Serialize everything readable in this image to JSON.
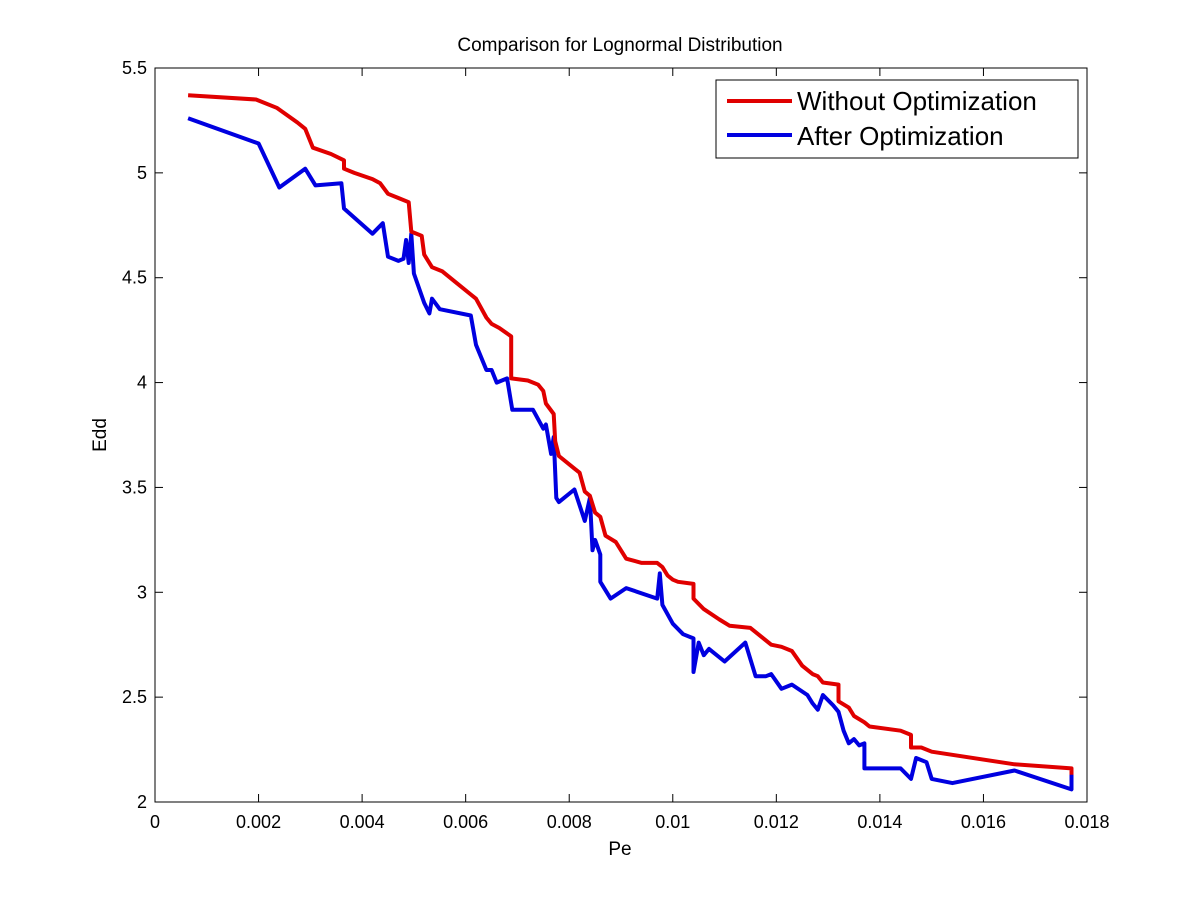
{
  "chart_data": {
    "type": "line",
    "title": "Comparison for Lognormal Distribution",
    "xlabel": "Pe",
    "ylabel": "Edd",
    "xlim": [
      0,
      0.018
    ],
    "ylim": [
      2,
      5.5
    ],
    "xticks": [
      0,
      0.002,
      0.004,
      0.006,
      0.008,
      0.01,
      0.012,
      0.014,
      0.016,
      0.018
    ],
    "xtick_labels": [
      "0",
      "0.002",
      "0.004",
      "0.006",
      "0.008",
      "0.01",
      "0.012",
      "0.014",
      "0.016",
      "0.018"
    ],
    "yticks": [
      2,
      2.5,
      3,
      3.5,
      4,
      4.5,
      5,
      5.5
    ],
    "ytick_labels": [
      "2",
      "2.5",
      "3",
      "3.5",
      "4",
      "4.5",
      "5",
      "5.5"
    ],
    "grid": false,
    "legend_position": "top-right",
    "series": [
      {
        "name": "Without Optimization",
        "color": "#e00000",
        "points": [
          [
            0.00064,
            5.37
          ],
          [
            0.00195,
            5.35
          ],
          [
            0.00235,
            5.31
          ],
          [
            0.00275,
            5.24
          ],
          [
            0.0029,
            5.21
          ],
          [
            0.00305,
            5.12
          ],
          [
            0.0034,
            5.09
          ],
          [
            0.00365,
            5.06
          ],
          [
            0.00365,
            5.02
          ],
          [
            0.00385,
            5.0
          ],
          [
            0.0042,
            4.97
          ],
          [
            0.00435,
            4.95
          ],
          [
            0.0045,
            4.9
          ],
          [
            0.0047,
            4.88
          ],
          [
            0.0049,
            4.86
          ],
          [
            0.00495,
            4.72
          ],
          [
            0.00515,
            4.7
          ],
          [
            0.0052,
            4.61
          ],
          [
            0.00535,
            4.55
          ],
          [
            0.00555,
            4.53
          ],
          [
            0.0058,
            4.48
          ],
          [
            0.0061,
            4.42
          ],
          [
            0.0062,
            4.4
          ],
          [
            0.0064,
            4.31
          ],
          [
            0.0065,
            4.28
          ],
          [
            0.00665,
            4.26
          ],
          [
            0.00688,
            4.22
          ],
          [
            0.00688,
            4.02
          ],
          [
            0.0072,
            4.01
          ],
          [
            0.0074,
            3.99
          ],
          [
            0.0075,
            3.96
          ],
          [
            0.00755,
            3.9
          ],
          [
            0.0077,
            3.85
          ],
          [
            0.00773,
            3.72
          ],
          [
            0.0078,
            3.65
          ],
          [
            0.0081,
            3.59
          ],
          [
            0.0082,
            3.57
          ],
          [
            0.0083,
            3.48
          ],
          [
            0.0084,
            3.46
          ],
          [
            0.0085,
            3.38
          ],
          [
            0.0086,
            3.36
          ],
          [
            0.0087,
            3.27
          ],
          [
            0.0089,
            3.24
          ],
          [
            0.0091,
            3.16
          ],
          [
            0.0094,
            3.14
          ],
          [
            0.0097,
            3.14
          ],
          [
            0.0098,
            3.12
          ],
          [
            0.0099,
            3.08
          ],
          [
            0.01,
            3.06
          ],
          [
            0.0101,
            3.05
          ],
          [
            0.0104,
            3.04
          ],
          [
            0.0104,
            2.97
          ],
          [
            0.0106,
            2.92
          ],
          [
            0.0109,
            2.87
          ],
          [
            0.0111,
            2.84
          ],
          [
            0.0115,
            2.83
          ],
          [
            0.0117,
            2.79
          ],
          [
            0.0119,
            2.75
          ],
          [
            0.0121,
            2.74
          ],
          [
            0.0123,
            2.72
          ],
          [
            0.0125,
            2.65
          ],
          [
            0.0127,
            2.61
          ],
          [
            0.0128,
            2.6
          ],
          [
            0.0129,
            2.57
          ],
          [
            0.0132,
            2.56
          ],
          [
            0.0132,
            2.48
          ],
          [
            0.0134,
            2.45
          ],
          [
            0.0135,
            2.41
          ],
          [
            0.0137,
            2.38
          ],
          [
            0.0138,
            2.36
          ],
          [
            0.0144,
            2.34
          ],
          [
            0.0146,
            2.32
          ],
          [
            0.0146,
            2.26
          ],
          [
            0.0148,
            2.26
          ],
          [
            0.015,
            2.24
          ],
          [
            0.0166,
            2.18
          ],
          [
            0.0177,
            2.16
          ],
          [
            0.0177,
            2.13
          ]
        ]
      },
      {
        "name": "After Optimization",
        "color": "#0000e0",
        "points": [
          [
            0.00064,
            5.26
          ],
          [
            0.002,
            5.14
          ],
          [
            0.0024,
            4.93
          ],
          [
            0.0029,
            5.02
          ],
          [
            0.0031,
            4.94
          ],
          [
            0.0036,
            4.95
          ],
          [
            0.00365,
            4.83
          ],
          [
            0.0042,
            4.71
          ],
          [
            0.0044,
            4.76
          ],
          [
            0.0045,
            4.6
          ],
          [
            0.0047,
            4.58
          ],
          [
            0.0048,
            4.59
          ],
          [
            0.00485,
            4.68
          ],
          [
            0.0049,
            4.57
          ],
          [
            0.00495,
            4.71
          ],
          [
            0.005,
            4.52
          ],
          [
            0.0052,
            4.38
          ],
          [
            0.0053,
            4.33
          ],
          [
            0.00535,
            4.4
          ],
          [
            0.0055,
            4.35
          ],
          [
            0.0061,
            4.32
          ],
          [
            0.0062,
            4.18
          ],
          [
            0.0064,
            4.06
          ],
          [
            0.0065,
            4.06
          ],
          [
            0.0066,
            4.0
          ],
          [
            0.0068,
            4.02
          ],
          [
            0.0069,
            3.87
          ],
          [
            0.0073,
            3.87
          ],
          [
            0.0075,
            3.78
          ],
          [
            0.00755,
            3.8
          ],
          [
            0.00765,
            3.66
          ],
          [
            0.0077,
            3.74
          ],
          [
            0.00775,
            3.45
          ],
          [
            0.0078,
            3.43
          ],
          [
            0.0081,
            3.49
          ],
          [
            0.0083,
            3.34
          ],
          [
            0.0084,
            3.45
          ],
          [
            0.00845,
            3.2
          ],
          [
            0.0085,
            3.25
          ],
          [
            0.0086,
            3.18
          ],
          [
            0.0086,
            3.05
          ],
          [
            0.0088,
            2.97
          ],
          [
            0.0091,
            3.02
          ],
          [
            0.0097,
            2.97
          ],
          [
            0.00975,
            3.09
          ],
          [
            0.0098,
            2.94
          ],
          [
            0.01,
            2.85
          ],
          [
            0.0102,
            2.8
          ],
          [
            0.0104,
            2.78
          ],
          [
            0.0104,
            2.62
          ],
          [
            0.0105,
            2.76
          ],
          [
            0.0106,
            2.7
          ],
          [
            0.0107,
            2.73
          ],
          [
            0.011,
            2.67
          ],
          [
            0.0114,
            2.76
          ],
          [
            0.0116,
            2.6
          ],
          [
            0.0118,
            2.6
          ],
          [
            0.0119,
            2.61
          ],
          [
            0.0121,
            2.54
          ],
          [
            0.0123,
            2.56
          ],
          [
            0.0126,
            2.51
          ],
          [
            0.0127,
            2.47
          ],
          [
            0.0128,
            2.44
          ],
          [
            0.0129,
            2.51
          ],
          [
            0.0131,
            2.46
          ],
          [
            0.0132,
            2.43
          ],
          [
            0.0133,
            2.34
          ],
          [
            0.0134,
            2.28
          ],
          [
            0.0135,
            2.3
          ],
          [
            0.0136,
            2.27
          ],
          [
            0.0137,
            2.28
          ],
          [
            0.0137,
            2.16
          ],
          [
            0.0144,
            2.16
          ],
          [
            0.0146,
            2.11
          ],
          [
            0.0147,
            2.21
          ],
          [
            0.0149,
            2.19
          ],
          [
            0.015,
            2.11
          ],
          [
            0.0154,
            2.09
          ],
          [
            0.0166,
            2.15
          ],
          [
            0.0177,
            2.06
          ],
          [
            0.0177,
            2.14
          ]
        ]
      }
    ]
  }
}
